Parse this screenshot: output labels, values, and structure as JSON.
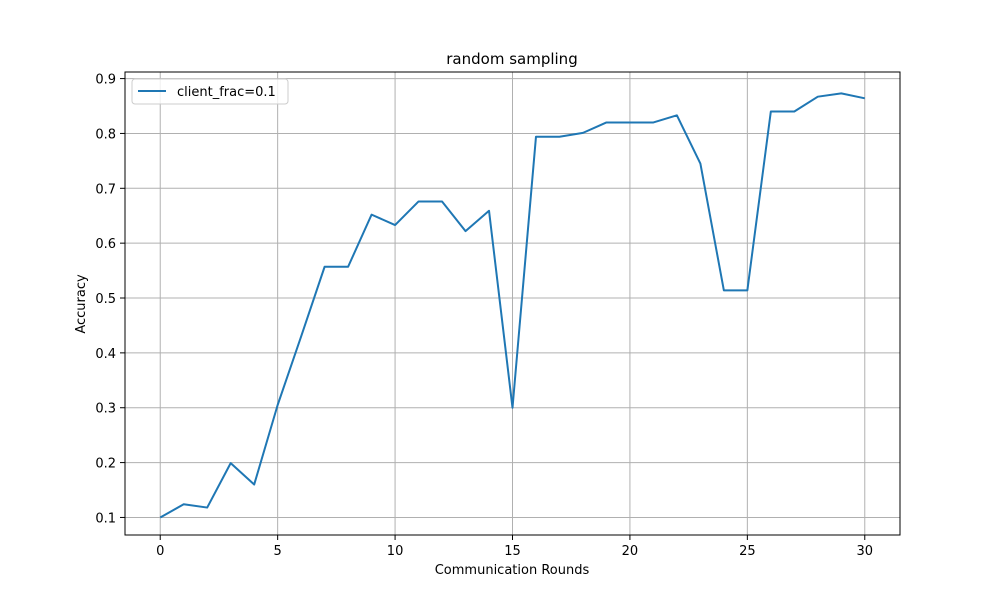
{
  "chart_data": {
    "type": "line",
    "title": "random sampling",
    "xlabel": "Communication Rounds",
    "ylabel": "Accuracy",
    "xlim": [
      -1.5,
      31.5
    ],
    "ylim": [
      0.068,
      0.912
    ],
    "xticks": [
      0,
      5,
      10,
      15,
      20,
      25,
      30
    ],
    "yticks": [
      0.1,
      0.2,
      0.3,
      0.4,
      0.5,
      0.6,
      0.7,
      0.8,
      0.9
    ],
    "grid": true,
    "legend_position": "top-left",
    "series": [
      {
        "name": "client_frac=0.1",
        "color": "#1f77b4",
        "x": [
          0,
          1,
          2,
          3,
          4,
          5,
          6,
          7,
          8,
          9,
          10,
          11,
          12,
          13,
          14,
          15,
          16,
          17,
          18,
          19,
          20,
          21,
          22,
          23,
          24,
          25,
          26,
          27,
          28,
          29,
          30
        ],
        "values": [
          0.1,
          0.124,
          0.118,
          0.199,
          0.16,
          0.305,
          0.43,
          0.557,
          0.557,
          0.652,
          0.633,
          0.676,
          0.676,
          0.622,
          0.659,
          0.3,
          0.794,
          0.794,
          0.801,
          0.82,
          0.82,
          0.82,
          0.833,
          0.745,
          0.514,
          0.514,
          0.84,
          0.84,
          0.867,
          0.873,
          0.864
        ]
      }
    ]
  }
}
